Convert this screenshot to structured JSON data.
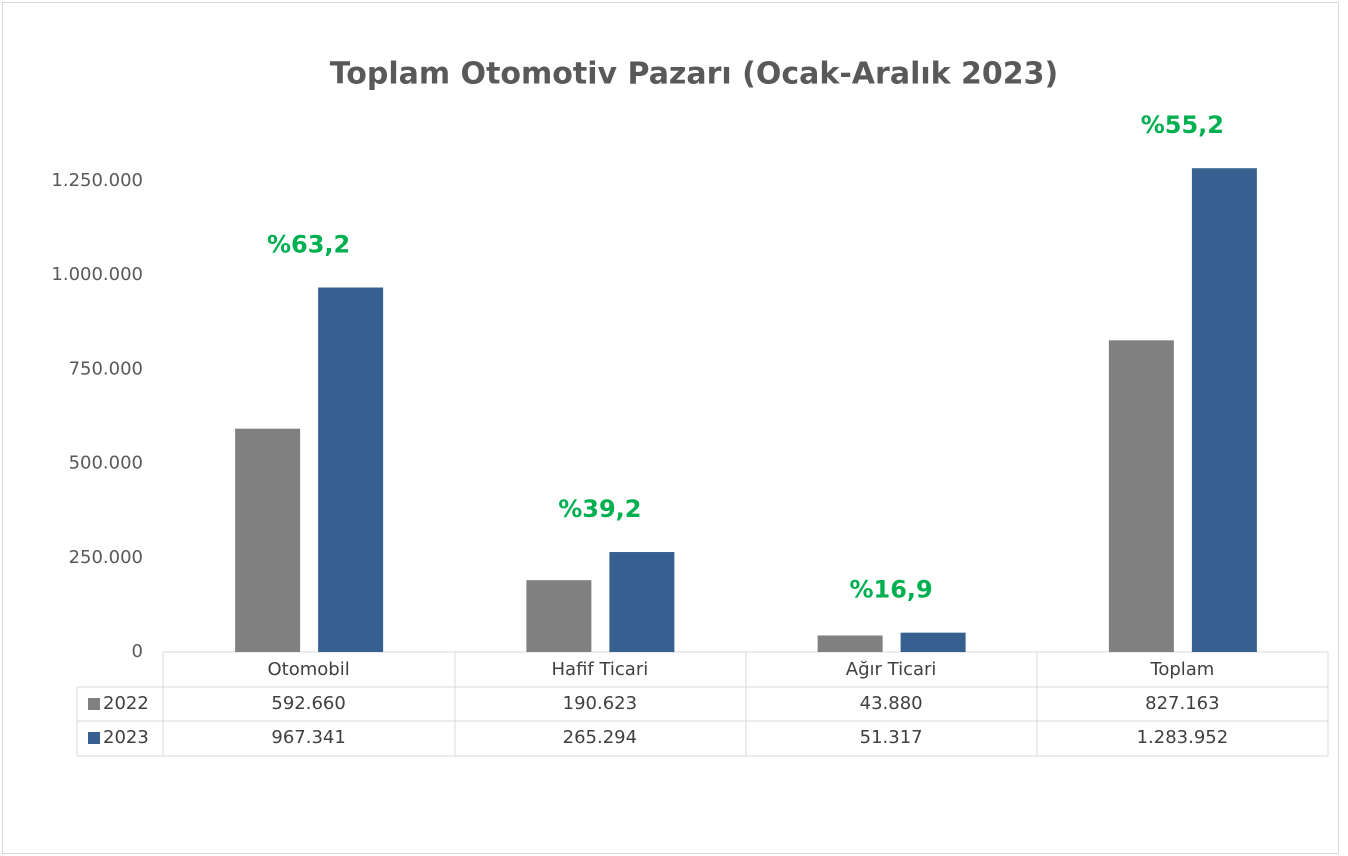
{
  "chart_data": {
    "type": "bar",
    "title": "Toplam Otomotiv Pazarı (Ocak-Aralık 2023)",
    "categories": [
      "Otomobil",
      "Hafif Ticari",
      "Ağır Ticari",
      "Toplam"
    ],
    "series": [
      {
        "name": "2022",
        "color": "#808080",
        "values": [
          592660,
          190623,
          43880,
          827163
        ],
        "value_labels": [
          "592.660",
          "190.623",
          "43.880",
          "827.163"
        ]
      },
      {
        "name": "2023",
        "color": "#35608f",
        "values": [
          967341,
          265294,
          51317,
          1283952
        ],
        "value_labels": [
          "967.341",
          "265.294",
          "51.317",
          "1.283.952"
        ]
      }
    ],
    "annotations": [
      "%63,2",
      "%39,2",
      "%16,9",
      "%55,2"
    ],
    "ylim": [
      0,
      1250000
    ],
    "yticks": [
      0,
      {
        "value": 250000,
        "label": "250.000"
      },
      {
        "value": 500000,
        "label": "500.000"
      },
      {
        "value": 750000,
        "label": "750.000"
      },
      {
        "value": 1000000,
        "label": "1.000.000"
      },
      {
        "value": 1250000,
        "label": "1.250.000"
      }
    ],
    "grid": false
  }
}
